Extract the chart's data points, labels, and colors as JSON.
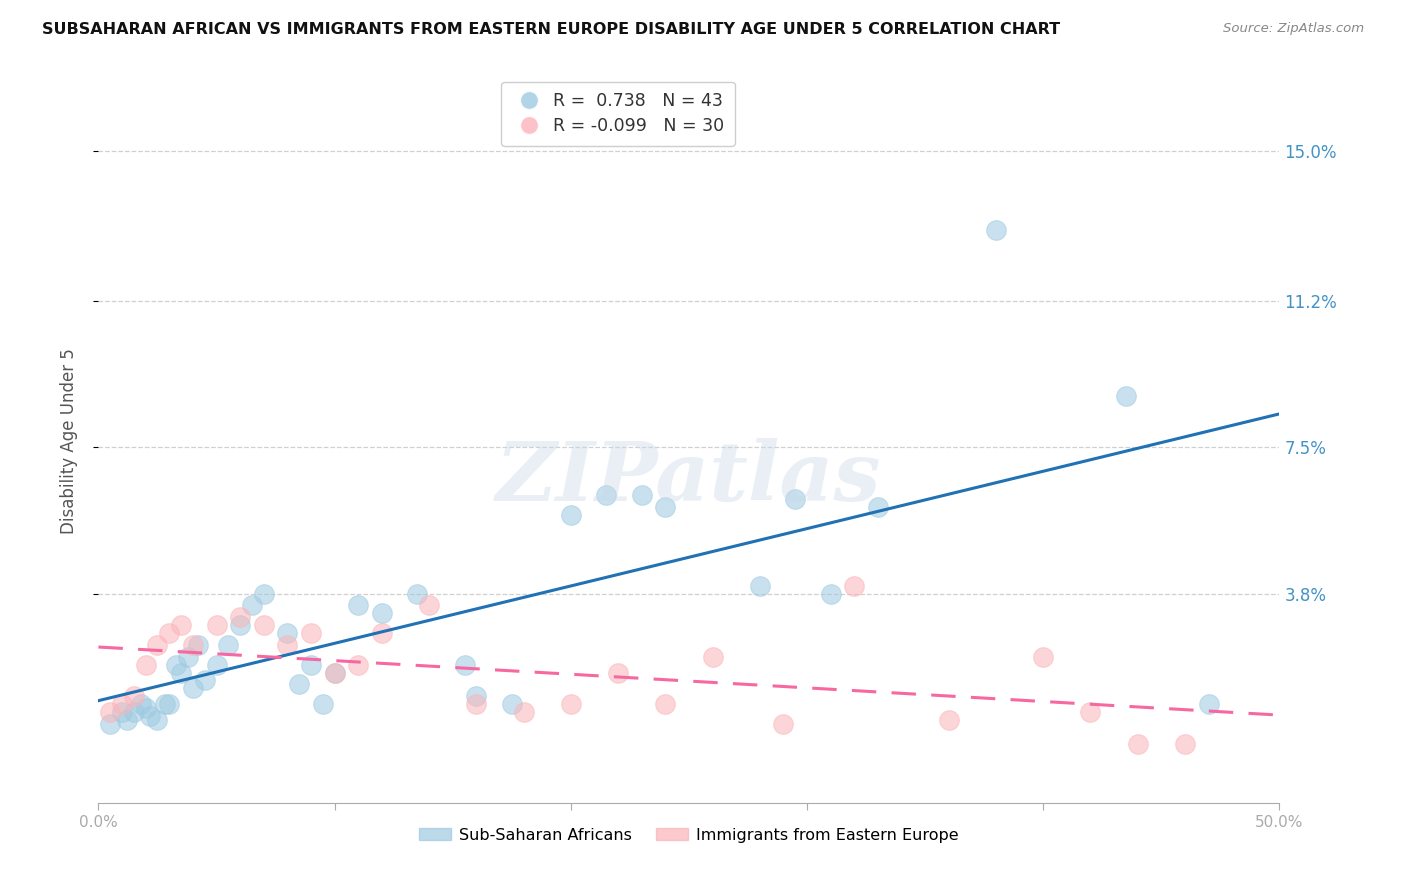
{
  "title": "SUBSAHARAN AFRICAN VS IMMIGRANTS FROM EASTERN EUROPE DISABILITY AGE UNDER 5 CORRELATION CHART",
  "source": "Source: ZipAtlas.com",
  "ylabel": "Disability Age Under 5",
  "y_tick_labels": [
    "15.0%",
    "11.2%",
    "7.5%",
    "3.8%"
  ],
  "y_tick_values": [
    0.15,
    0.112,
    0.075,
    0.038
  ],
  "xlim": [
    0.0,
    0.5
  ],
  "ylim": [
    -0.015,
    0.168
  ],
  "legend_blue_label": "Sub-Saharan Africans",
  "legend_pink_label": "Immigrants from Eastern Europe",
  "R_blue": "0.738",
  "N_blue": "43",
  "R_pink": "-0.099",
  "N_pink": "30",
  "blue_color": "#9ecae1",
  "pink_color": "#fbb4b9",
  "trend_blue_color": "#2171b5",
  "trend_pink_color": "#f768a1",
  "right_axis_color": "#4292c6",
  "blue_scatter_x": [
    0.005,
    0.01,
    0.012,
    0.015,
    0.018,
    0.02,
    0.022,
    0.025,
    0.028,
    0.03,
    0.033,
    0.035,
    0.038,
    0.04,
    0.042,
    0.045,
    0.05,
    0.055,
    0.06,
    0.065,
    0.07,
    0.08,
    0.085,
    0.09,
    0.095,
    0.1,
    0.11,
    0.12,
    0.135,
    0.155,
    0.16,
    0.175,
    0.2,
    0.215,
    0.23,
    0.24,
    0.28,
    0.295,
    0.31,
    0.33,
    0.38,
    0.435,
    0.47
  ],
  "blue_scatter_y": [
    0.005,
    0.008,
    0.006,
    0.008,
    0.01,
    0.009,
    0.007,
    0.006,
    0.01,
    0.01,
    0.02,
    0.018,
    0.022,
    0.014,
    0.025,
    0.016,
    0.02,
    0.025,
    0.03,
    0.035,
    0.038,
    0.028,
    0.015,
    0.02,
    0.01,
    0.018,
    0.035,
    0.033,
    0.038,
    0.02,
    0.012,
    0.01,
    0.058,
    0.063,
    0.063,
    0.06,
    0.04,
    0.062,
    0.038,
    0.06,
    0.13,
    0.088,
    0.01
  ],
  "pink_scatter_x": [
    0.005,
    0.01,
    0.015,
    0.02,
    0.025,
    0.03,
    0.035,
    0.04,
    0.05,
    0.06,
    0.07,
    0.08,
    0.09,
    0.1,
    0.11,
    0.12,
    0.14,
    0.16,
    0.18,
    0.2,
    0.22,
    0.24,
    0.26,
    0.29,
    0.32,
    0.36,
    0.4,
    0.42,
    0.44,
    0.46
  ],
  "pink_scatter_y": [
    0.008,
    0.01,
    0.012,
    0.02,
    0.025,
    0.028,
    0.03,
    0.025,
    0.03,
    0.032,
    0.03,
    0.025,
    0.028,
    0.018,
    0.02,
    0.028,
    0.035,
    0.01,
    0.008,
    0.01,
    0.018,
    0.01,
    0.022,
    0.005,
    0.04,
    0.006,
    0.022,
    0.008,
    0.0,
    0.0
  ],
  "watermark_text": "ZIPatlas",
  "background_color": "#ffffff",
  "grid_color": "#d0d0d0"
}
